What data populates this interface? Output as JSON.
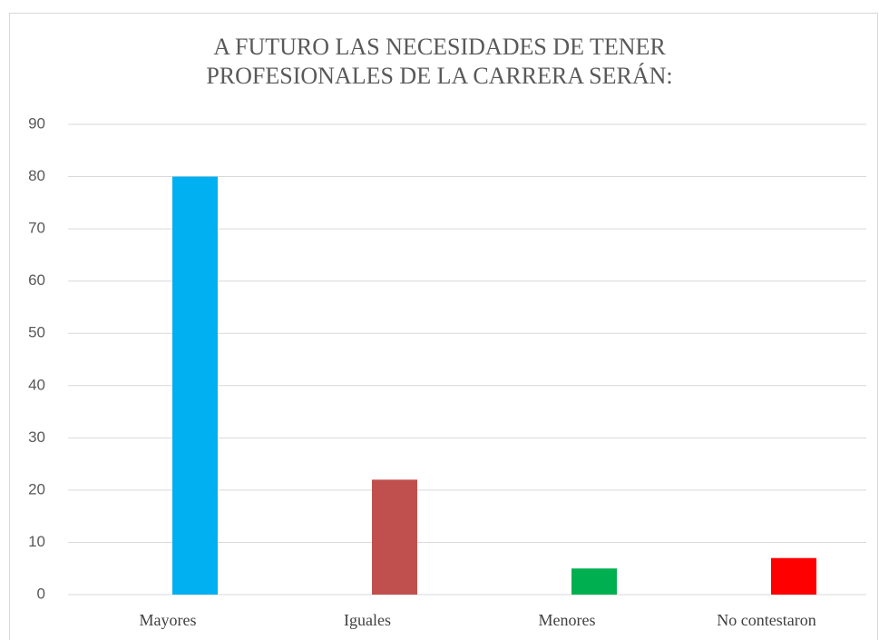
{
  "chart_data": {
    "type": "bar",
    "title": "A FUTURO LAS NECESIDADES DE TENER PROFESIONALES DE LA CARRERA SERÁN:",
    "categories": [
      "Mayores",
      "Iguales",
      "Menores",
      "No contestaron"
    ],
    "values": [
      80,
      22,
      5,
      7
    ],
    "colors": [
      "#00b0f0",
      "#c0504d",
      "#00b050",
      "#ff0000"
    ],
    "ylim": [
      0,
      90
    ],
    "yticks": [
      0,
      10,
      20,
      30,
      40,
      50,
      60,
      70,
      80,
      90
    ],
    "grid": true
  }
}
